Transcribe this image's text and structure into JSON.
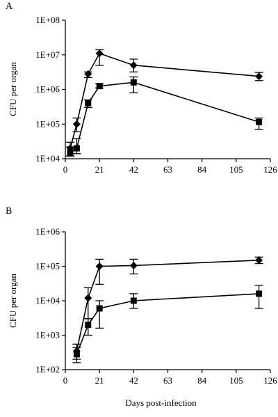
{
  "chart_data": [
    {
      "type": "line",
      "panel_label": "A",
      "title": "",
      "xlabel": "",
      "ylabel": "CFU per organ",
      "y_scale": "log",
      "xlim": [
        0,
        126
      ],
      "x_ticks": [
        "0",
        "21",
        "42",
        "63",
        "84",
        "105",
        "126"
      ],
      "ylim": [
        10000,
        100000000
      ],
      "y_ticks": [
        "1E+04",
        "1E+05",
        "1E+06",
        "1E+07",
        "1E+08"
      ],
      "grid": false,
      "legend": "none",
      "series": [
        {
          "marker": "diamond",
          "color": "#000000",
          "x": [
            3,
            7,
            14,
            21,
            42,
            119
          ],
          "values": [
            20000,
            100000,
            2800000,
            11000000,
            5000000,
            2400000
          ],
          "error_low": [
            12000,
            60000,
            2200000,
            5000000,
            3200000,
            1800000
          ],
          "error_high": [
            30000,
            150000,
            3200000,
            14000000,
            7500000,
            3100000
          ]
        },
        {
          "marker": "square",
          "color": "#000000",
          "x": [
            3,
            7,
            14,
            21,
            42,
            119
          ],
          "values": [
            15000,
            20000,
            400000,
            1250000,
            1600000,
            115000
          ],
          "error_low": [
            12000,
            14000,
            300000,
            1100000,
            800000,
            70000
          ],
          "error_high": [
            22000,
            38000,
            500000,
            1450000,
            2300000,
            150000
          ]
        }
      ]
    },
    {
      "type": "line",
      "panel_label": "B",
      "title": "",
      "xlabel": "Days post-infection",
      "ylabel": "CFU per organ",
      "y_scale": "log",
      "xlim": [
        0,
        126
      ],
      "x_ticks": [
        "0",
        "21",
        "42",
        "63",
        "84",
        "105",
        "126"
      ],
      "ylim": [
        100,
        1000000
      ],
      "y_ticks": [
        "1E+02",
        "1E+03",
        "1E+04",
        "1E+05",
        "1E+06"
      ],
      "grid": false,
      "legend": "none",
      "series": [
        {
          "marker": "diamond",
          "color": "#000000",
          "x": [
            7,
            14,
            21,
            42,
            119
          ],
          "values": [
            350,
            12000,
            100000,
            105000,
            150000
          ],
          "error_low": [
            200,
            3000,
            30000,
            60000,
            120000
          ],
          "error_high": [
            550,
            24000,
            160000,
            160000,
            185000
          ]
        },
        {
          "marker": "square",
          "color": "#000000",
          "x": [
            7,
            14,
            21,
            42,
            119
          ],
          "values": [
            280,
            2000,
            6000,
            10000,
            16000
          ],
          "error_low": [
            160,
            1000,
            1600,
            6000,
            6000
          ],
          "error_high": [
            440,
            3000,
            10000,
            16000,
            28000
          ]
        }
      ]
    }
  ]
}
